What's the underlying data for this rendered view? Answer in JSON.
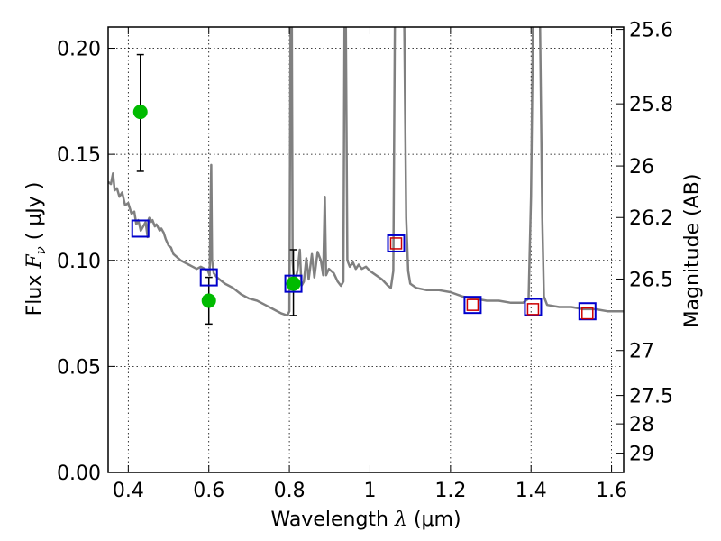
{
  "chart_data": {
    "type": "scatter",
    "xlabel": "Wavelength",
    "xlabel_symbol": "λ",
    "xlabel_unit": "(μm)",
    "ylabel": "Flux",
    "ylabel_symbol": "F",
    "ylabel_subscript": "ν",
    "ylabel_unit": "( μJy )",
    "y2label": "Magnitude (AB)",
    "xlim": [
      0.35,
      1.63
    ],
    "ylim": [
      0.0,
      0.21
    ],
    "grid": true,
    "x_ticks": [
      0.4,
      0.6,
      0.8,
      1.0,
      1.2,
      1.4,
      1.6
    ],
    "x_tick_labels": [
      "0.4",
      "0.6",
      "0.8",
      "1",
      "1.2",
      "1.4",
      "1.6"
    ],
    "y_ticks": [
      0.0,
      0.05,
      0.1,
      0.15,
      0.2
    ],
    "y_tick_labels": [
      "0.00",
      "0.05",
      "0.10",
      "0.15",
      "0.20"
    ],
    "y2_ticks": [
      {
        "label": "25.6",
        "flux": 0.2089
      },
      {
        "label": "25.8",
        "flux": 0.1738
      },
      {
        "label": "26",
        "flux": 0.1445
      },
      {
        "label": "26.2",
        "flux": 0.1202
      },
      {
        "label": "26.5",
        "flux": 0.0912
      },
      {
        "label": "27",
        "flux": 0.0575
      },
      {
        "label": "27.5",
        "flux": 0.0363
      },
      {
        "label": "28",
        "flux": 0.0229
      },
      {
        "label": "29",
        "flux": 0.0091
      }
    ],
    "series": [
      {
        "kind": "line",
        "color": "#808080",
        "points": [
          [
            0.35,
            0.137
          ],
          [
            0.357,
            0.136
          ],
          [
            0.362,
            0.141
          ],
          [
            0.366,
            0.133
          ],
          [
            0.372,
            0.134
          ],
          [
            0.378,
            0.13
          ],
          [
            0.385,
            0.132
          ],
          [
            0.392,
            0.126
          ],
          [
            0.4,
            0.127
          ],
          [
            0.408,
            0.122
          ],
          [
            0.415,
            0.123
          ],
          [
            0.42,
            0.117
          ],
          [
            0.425,
            0.119
          ],
          [
            0.431,
            0.114
          ],
          [
            0.437,
            0.116
          ],
          [
            0.443,
            0.118
          ],
          [
            0.448,
            0.111
          ],
          [
            0.45,
            0.119
          ],
          [
            0.452,
            0.12
          ],
          [
            0.456,
            0.118
          ],
          [
            0.46,
            0.119
          ],
          [
            0.466,
            0.116
          ],
          [
            0.47,
            0.117
          ],
          [
            0.478,
            0.114
          ],
          [
            0.482,
            0.115
          ],
          [
            0.488,
            0.113
          ],
          [
            0.493,
            0.11
          ],
          [
            0.5,
            0.107
          ],
          [
            0.506,
            0.106
          ],
          [
            0.512,
            0.103
          ],
          [
            0.518,
            0.102
          ],
          [
            0.524,
            0.101
          ],
          [
            0.53,
            0.1
          ],
          [
            0.54,
            0.099
          ],
          [
            0.55,
            0.098
          ],
          [
            0.56,
            0.097
          ],
          [
            0.57,
            0.096
          ],
          [
            0.58,
            0.097
          ],
          [
            0.59,
            0.096
          ],
          [
            0.598,
            0.095
          ],
          [
            0.602,
            0.093
          ],
          [
            0.604,
            0.12
          ],
          [
            0.606,
            0.145
          ],
          [
            0.608,
            0.1
          ],
          [
            0.612,
            0.094
          ],
          [
            0.62,
            0.092
          ],
          [
            0.64,
            0.089
          ],
          [
            0.66,
            0.087
          ],
          [
            0.68,
            0.084
          ],
          [
            0.7,
            0.082
          ],
          [
            0.72,
            0.081
          ],
          [
            0.74,
            0.079
          ],
          [
            0.76,
            0.077
          ],
          [
            0.78,
            0.075
          ],
          [
            0.795,
            0.074
          ],
          [
            0.8,
            0.076
          ],
          [
            0.803,
            0.215
          ],
          [
            0.806,
            0.215
          ],
          [
            0.808,
            0.1
          ],
          [
            0.812,
            0.089
          ],
          [
            0.82,
            0.095
          ],
          [
            0.826,
            0.105
          ],
          [
            0.83,
            0.088
          ],
          [
            0.836,
            0.09
          ],
          [
            0.842,
            0.101
          ],
          [
            0.848,
            0.091
          ],
          [
            0.856,
            0.103
          ],
          [
            0.862,
            0.092
          ],
          [
            0.87,
            0.104
          ],
          [
            0.878,
            0.1
          ],
          [
            0.884,
            0.093
          ],
          [
            0.888,
            0.13
          ],
          [
            0.891,
            0.093
          ],
          [
            0.898,
            0.096
          ],
          [
            0.91,
            0.094
          ],
          [
            0.92,
            0.09
          ],
          [
            0.928,
            0.088
          ],
          [
            0.934,
            0.09
          ],
          [
            0.937,
            0.215
          ],
          [
            0.94,
            0.215
          ],
          [
            0.944,
            0.1
          ],
          [
            0.95,
            0.097
          ],
          [
            0.958,
            0.099
          ],
          [
            0.965,
            0.096
          ],
          [
            0.972,
            0.098
          ],
          [
            0.98,
            0.096
          ],
          [
            0.99,
            0.097
          ],
          [
            1.0,
            0.095
          ],
          [
            1.015,
            0.093
          ],
          [
            1.03,
            0.091
          ],
          [
            1.045,
            0.088
          ],
          [
            1.052,
            0.087
          ],
          [
            1.058,
            0.095
          ],
          [
            1.062,
            0.215
          ],
          [
            1.072,
            0.215
          ],
          [
            1.078,
            0.215
          ],
          [
            1.085,
            0.215
          ],
          [
            1.09,
            0.12
          ],
          [
            1.095,
            0.095
          ],
          [
            1.1,
            0.089
          ],
          [
            1.115,
            0.087
          ],
          [
            1.14,
            0.086
          ],
          [
            1.17,
            0.086
          ],
          [
            1.2,
            0.085
          ],
          [
            1.23,
            0.083
          ],
          [
            1.26,
            0.082
          ],
          [
            1.29,
            0.081
          ],
          [
            1.32,
            0.081
          ],
          [
            1.35,
            0.08
          ],
          [
            1.38,
            0.08
          ],
          [
            1.394,
            0.082
          ],
          [
            1.4,
            0.13
          ],
          [
            1.405,
            0.215
          ],
          [
            1.415,
            0.215
          ],
          [
            1.422,
            0.215
          ],
          [
            1.428,
            0.12
          ],
          [
            1.432,
            0.083
          ],
          [
            1.44,
            0.079
          ],
          [
            1.47,
            0.078
          ],
          [
            1.5,
            0.078
          ],
          [
            1.53,
            0.077
          ],
          [
            1.56,
            0.077
          ],
          [
            1.59,
            0.076
          ],
          [
            1.63,
            0.076
          ]
        ]
      },
      {
        "kind": "points",
        "name": "",
        "color": "#00bb00",
        "x": [
          0.43,
          0.6,
          0.81
        ],
        "y": [
          0.17,
          0.081,
          0.089
        ],
        "err_low": [
          0.142,
          0.07,
          0.074
        ],
        "err_high": [
          0.197,
          0.092,
          0.105
        ]
      },
      {
        "kind": "squares",
        "color": "#0000cc",
        "x": [
          0.43,
          0.6,
          0.81,
          1.065,
          1.255,
          1.405,
          1.54
        ],
        "y": [
          0.115,
          0.092,
          0.089,
          0.108,
          0.079,
          0.078,
          0.076
        ]
      },
      {
        "kind": "squares",
        "color": "#cc0000",
        "x": [
          1.065,
          1.255,
          1.405,
          1.54
        ],
        "y": [
          0.108,
          0.079,
          0.077,
          0.075
        ]
      }
    ]
  }
}
